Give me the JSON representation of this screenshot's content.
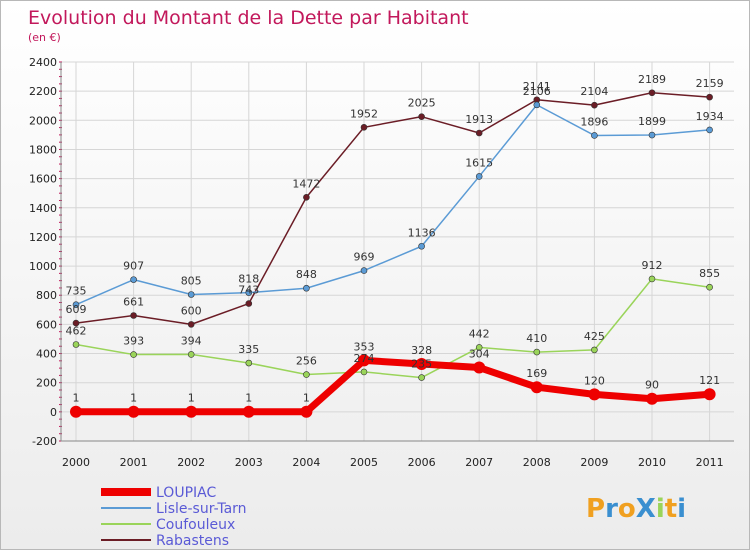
{
  "chart_data": {
    "type": "line",
    "title": "Evolution du Montant de la Dette par Habitant",
    "subtitle": "(en €)",
    "x": [
      "2000",
      "2001",
      "2002",
      "2003",
      "2004",
      "2005",
      "2006",
      "2007",
      "2008",
      "2009",
      "2010",
      "2011"
    ],
    "ylim": [
      -200,
      2400
    ],
    "yticks": [
      "-200",
      "0",
      "200",
      "400",
      "600",
      "800",
      "1000",
      "1200",
      "1400",
      "1600",
      "1800",
      "2000",
      "2200",
      "2400"
    ],
    "grid": true,
    "legend_position": "bottom-left",
    "series": [
      {
        "name": "Rabastens",
        "color": "#6b1d26",
        "values": [
          609,
          661,
          600,
          743,
          1472,
          1952,
          2025,
          1913,
          2141,
          2104,
          2189,
          2159
        ],
        "labels": [
          "609",
          "661",
          "600",
          "743",
          "1472",
          "1952",
          "2025",
          "1913",
          "2141",
          "2104",
          "2189",
          "2159"
        ]
      },
      {
        "name": "Lisle-sur-Tarn",
        "color": "#5b9bd5",
        "values": [
          735,
          907,
          805,
          818,
          848,
          969,
          1136,
          1615,
          2106,
          1896,
          1899,
          1934
        ],
        "labels": [
          "735",
          "907",
          "805",
          "818",
          "848",
          "969",
          "1136",
          "1615",
          "2106",
          "1896",
          "1899",
          "1934"
        ]
      },
      {
        "name": "Coufouleux",
        "color": "#9ad45a",
        "values": [
          462,
          393,
          394,
          335,
          256,
          274,
          235,
          442,
          410,
          425,
          912,
          855
        ],
        "labels": [
          "462",
          "393",
          "394",
          "335",
          "256",
          "274",
          "235",
          "442",
          "410",
          "425",
          "912",
          "855"
        ]
      },
      {
        "name": "LOUPIAC",
        "color": "#ee0000",
        "values": [
          1,
          1,
          1,
          1,
          1,
          353,
          328,
          304,
          169,
          120,
          90,
          121
        ],
        "labels": [
          "1",
          "1",
          "1",
          "1",
          "1",
          "353",
          "328",
          "304",
          "169",
          "120",
          "90",
          "121"
        ]
      }
    ],
    "legend": [
      "LOUPIAC",
      "Lisle-sur-Tarn",
      "Coufouleux",
      "Rabastens"
    ]
  },
  "logo": {
    "text": "ProXiti"
  }
}
